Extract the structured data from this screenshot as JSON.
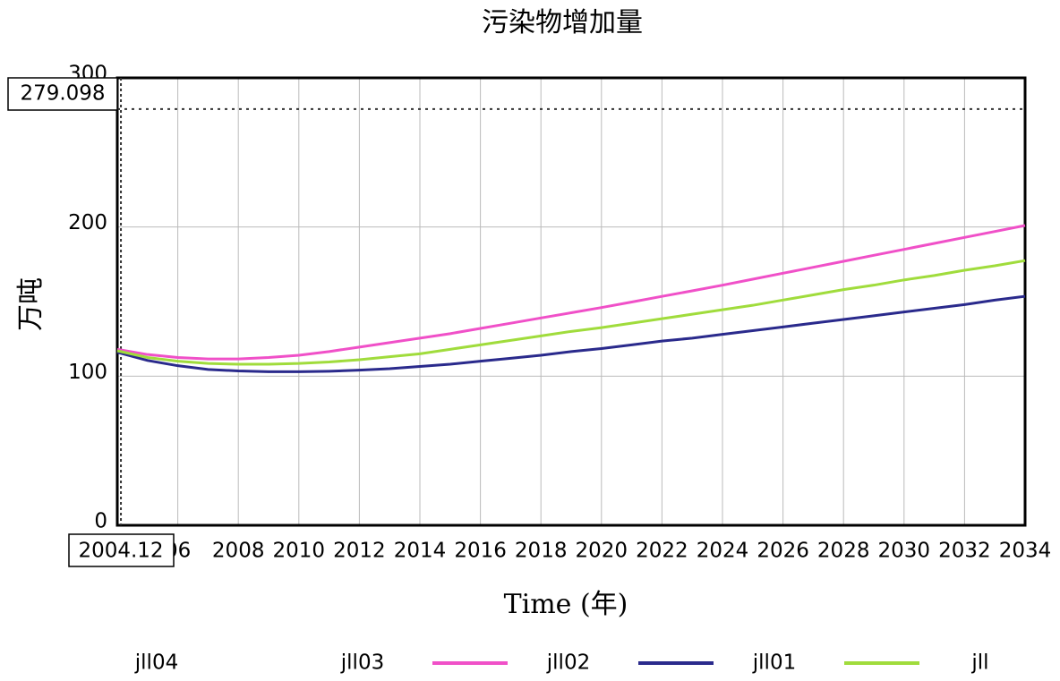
{
  "chart_data": {
    "type": "line",
    "title": "污染物增加量",
    "x_label": "Time (年)",
    "y_label": "万吨",
    "x": [
      2004,
      2005,
      2006,
      2007,
      2008,
      2009,
      2010,
      2011,
      2012,
      2013,
      2014,
      2015,
      2016,
      2017,
      2018,
      2019,
      2020,
      2021,
      2022,
      2023,
      2024,
      2025,
      2026,
      2027,
      2028,
      2029,
      2030,
      2031,
      2032,
      2033,
      2034
    ],
    "series": [
      {
        "name": "jll04",
        "values": [
          null,
          null,
          null,
          null,
          null,
          null,
          null,
          null,
          null,
          null,
          null,
          null,
          null,
          null,
          null,
          null,
          null,
          null,
          null,
          null,
          null,
          null,
          null,
          null,
          null,
          null,
          null,
          null,
          null,
          null,
          null
        ]
      },
      {
        "name": "jll03",
        "values": [
          null,
          null,
          null,
          null,
          null,
          null,
          null,
          null,
          null,
          null,
          null,
          null,
          null,
          null,
          null,
          null,
          null,
          null,
          null,
          null,
          null,
          null,
          null,
          null,
          null,
          null,
          null,
          null,
          null,
          null,
          null
        ]
      },
      {
        "name": "jll02",
        "color": "#f050c8",
        "values": [
          118,
          114.5,
          112.5,
          111.5,
          111.5,
          112.5,
          114,
          116.5,
          119.5,
          122.5,
          125.5,
          128.5,
          132,
          135.5,
          139,
          142.5,
          146,
          149.7,
          153.5,
          157.2,
          161,
          165,
          169,
          173,
          177,
          181,
          185,
          189,
          193,
          197,
          201
        ]
      },
      {
        "name": "jll01",
        "color": "#2a2a8c",
        "values": [
          116,
          110.5,
          107,
          104.5,
          103.5,
          103,
          103,
          103.3,
          104,
          105,
          106.5,
          108,
          110,
          112,
          114,
          116.5,
          118.5,
          121,
          123.5,
          125.5,
          128,
          130.5,
          133,
          135.5,
          138,
          140.5,
          143,
          145.5,
          148,
          151,
          153.5
        ]
      },
      {
        "name": "jll",
        "color": "#a0dc3c",
        "values": [
          117,
          112.5,
          110,
          108.5,
          108,
          108,
          108.5,
          109.5,
          111,
          113,
          115,
          118,
          121,
          124,
          127,
          130,
          132.5,
          135.5,
          138.5,
          141.5,
          144.5,
          147.5,
          151,
          154.5,
          158,
          161,
          164.5,
          167.5,
          171,
          174,
          177.5
        ]
      }
    ],
    "xlim": [
      2004,
      2034
    ],
    "xticks": [
      {
        "value": 2006,
        "label": "06"
      },
      2008,
      2010,
      2012,
      2014,
      2016,
      2018,
      2020,
      2022,
      2024,
      2026,
      2028,
      2030,
      2032,
      2034
    ],
    "ylim": [
      0,
      300
    ],
    "yticks": [
      0,
      100,
      200,
      300
    ],
    "grid": true,
    "y_cursor": 279.098,
    "x_cursor": 2004.12
  }
}
